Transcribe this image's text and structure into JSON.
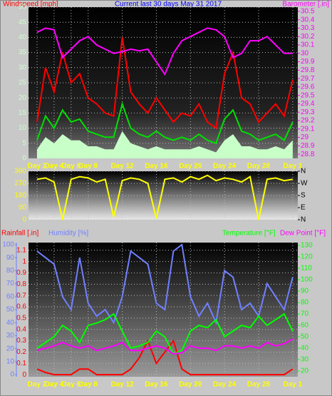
{
  "chart_data": [
    {
      "type": "line",
      "title": "Current last 30 days May 31 2017",
      "ylabel": "Windspeed [mph]",
      "y2label": "Barometer [.in]",
      "x": [
        0,
        1,
        2,
        3,
        4,
        5,
        6,
        7,
        8,
        9,
        10,
        11,
        12,
        13,
        14,
        15,
        16,
        17,
        18,
        19,
        20,
        21,
        22,
        23,
        24,
        25,
        26,
        27,
        28,
        29,
        30
      ],
      "xlim": [
        -1,
        30.6
      ],
      "xticks": [
        {
          "value": 0,
          "label": "Day 2"
        },
        {
          "value": 2,
          "label": "Day 4"
        },
        {
          "value": 4,
          "label": "Day 6"
        },
        {
          "value": 6,
          "label": "Day 8"
        },
        {
          "value": 10,
          "label": "Day 12"
        },
        {
          "value": 14,
          "label": "Day 16"
        },
        {
          "value": 18,
          "label": "Day 20"
        },
        {
          "value": 22,
          "label": "Day 24"
        },
        {
          "value": 26,
          "label": "Day 28"
        },
        {
          "value": 30,
          "label": "Day 1"
        }
      ],
      "ylim": [
        0,
        50
      ],
      "yticks": [
        0,
        5,
        10,
        15,
        20,
        25,
        30,
        35,
        40,
        45,
        50
      ],
      "y2lim": [
        28.75,
        30.55
      ],
      "y2ticks": [
        28.8,
        28.9,
        29,
        29.1,
        29.2,
        29.3,
        29.4,
        29.5,
        29.6,
        29.7,
        29.8,
        29.9,
        30,
        30.1,
        30.2,
        30.3,
        30.4,
        30.5
      ],
      "grid": true,
      "series": [
        {
          "style": "area",
          "color": "#c8ffc8",
          "values": [
            3,
            7,
            5,
            8,
            6,
            6,
            4,
            4,
            3,
            3,
            9,
            5,
            4,
            3,
            4,
            3,
            3,
            3,
            3,
            4,
            3,
            2,
            6,
            8,
            4,
            4,
            3,
            3,
            4,
            3,
            6
          ]
        },
        {
          "color": "#ff0000",
          "values": [
            12,
            30,
            22,
            35,
            25,
            28,
            20,
            18,
            15,
            14,
            40,
            22,
            18,
            15,
            20,
            16,
            12,
            15,
            14,
            18,
            12,
            10,
            28,
            35,
            20,
            18,
            12,
            15,
            18,
            14,
            26
          ]
        },
        {
          "color": "#00e000",
          "values": [
            6,
            14,
            10,
            16,
            12,
            13,
            9,
            8,
            7,
            7,
            18,
            10,
            8,
            7,
            9,
            7,
            6,
            7,
            6,
            8,
            6,
            5,
            13,
            16,
            9,
            8,
            6,
            7,
            8,
            6,
            12
          ]
        },
        {
          "color": "#ff00ff",
          "axis": "y2",
          "values": [
            30.25,
            30.3,
            30.28,
            29.95,
            30.05,
            30.15,
            30.2,
            30.1,
            30.05,
            30.0,
            30.02,
            30.05,
            30.03,
            30.05,
            29.9,
            29.75,
            30.0,
            30.15,
            30.2,
            30.25,
            30.3,
            30.28,
            30.2,
            29.95,
            30.0,
            30.15,
            30.15,
            30.2,
            30.1,
            30.0,
            30.0
          ]
        }
      ]
    },
    {
      "type": "line",
      "x": [
        0,
        1,
        2,
        3,
        4,
        5,
        6,
        7,
        8,
        9,
        10,
        11,
        12,
        13,
        14,
        15,
        16,
        17,
        18,
        19,
        20,
        21,
        22,
        23,
        24,
        25,
        26,
        27,
        28,
        29,
        30
      ],
      "xlim": [
        -1,
        30.6
      ],
      "ylim": [
        0,
        360
      ],
      "yticks": [
        0,
        90,
        180,
        270,
        360
      ],
      "y2lim": [
        0,
        360
      ],
      "y2ticks": [
        {
          "value": 0,
          "label": "N"
        },
        {
          "value": 90,
          "label": "E"
        },
        {
          "value": 180,
          "label": "S"
        },
        {
          "value": 270,
          "label": "W"
        },
        {
          "value": 360,
          "label": "N"
        }
      ],
      "grid": true,
      "series": [
        {
          "color": "#ffff00",
          "values": [
            300,
            310,
            280,
            0,
            300,
            320,
            310,
            280,
            300,
            20,
            290,
            310,
            300,
            270,
            10,
            300,
            310,
            280,
            320,
            300,
            330,
            290,
            310,
            300,
            280,
            320,
            0,
            300,
            310,
            290,
            300
          ]
        }
      ]
    },
    {
      "type": "line",
      "x": [
        0,
        1,
        2,
        3,
        4,
        5,
        6,
        7,
        8,
        9,
        10,
        11,
        12,
        13,
        14,
        15,
        16,
        17,
        18,
        19,
        20,
        21,
        22,
        23,
        24,
        25,
        26,
        27,
        28,
        29,
        30
      ],
      "xlim": [
        -1,
        30.6
      ],
      "xticks": [
        {
          "value": 0,
          "label": "Day 2"
        },
        {
          "value": 2,
          "label": "Day 4"
        },
        {
          "value": 4,
          "label": "Day 6"
        },
        {
          "value": 6,
          "label": "Day 8"
        },
        {
          "value": 10,
          "label": "Day 12"
        },
        {
          "value": 14,
          "label": "Day 16"
        },
        {
          "value": 18,
          "label": "Day 20"
        },
        {
          "value": 22,
          "label": "Day 24"
        },
        {
          "value": 26,
          "label": "Day 28"
        },
        {
          "value": 30,
          "label": "Day 1"
        }
      ],
      "ylim": [
        -0.018,
        1.168
      ],
      "yticks": [
        0,
        0.1,
        0.2,
        0.3,
        0.4,
        0.5,
        0.6,
        0.7,
        0.8,
        0.9,
        1,
        1.1
      ],
      "y3lim": [
        -1.6,
        101.6
      ],
      "y3ticks": [
        0,
        10,
        20,
        30,
        40,
        50,
        60,
        70,
        80,
        90,
        100
      ],
      "y2lim": [
        15,
        132.5
      ],
      "y2ticks": [
        20,
        30,
        40,
        50,
        60,
        70,
        80,
        90,
        100,
        110,
        120,
        130
      ],
      "grid": true,
      "series": [
        {
          "name": "Rainfall [.in]",
          "color": "#ff0000",
          "values": [
            0.05,
            0.02,
            0,
            0,
            0,
            0.05,
            0.05,
            0,
            0,
            0,
            0,
            0.05,
            0.15,
            0.3,
            0.1,
            0.2,
            0.3,
            0.05,
            0,
            0,
            0,
            0,
            0,
            0,
            0,
            0,
            0,
            0,
            0,
            0,
            0.05
          ]
        },
        {
          "name": "Humidity [%]",
          "color": "#7080ff",
          "axis": "y3",
          "values": [
            95,
            90,
            85,
            60,
            50,
            90,
            55,
            45,
            50,
            40,
            60,
            95,
            90,
            85,
            55,
            50,
            95,
            100,
            60,
            45,
            55,
            40,
            80,
            75,
            50,
            55,
            45,
            70,
            60,
            50,
            75
          ]
        },
        {
          "name": "Temperature [°F]",
          "color": "#00ff00",
          "axis": "y2",
          "values": [
            40,
            45,
            50,
            60,
            55,
            45,
            60,
            62,
            65,
            70,
            55,
            40,
            42,
            45,
            55,
            50,
            35,
            38,
            55,
            60,
            58,
            65,
            50,
            55,
            60,
            58,
            68,
            60,
            65,
            70,
            55
          ]
        },
        {
          "name": "Dew Point [°F]",
          "color": "#ff00ff",
          "axis": "y2",
          "values": [
            38,
            40,
            42,
            45,
            42,
            40,
            42,
            38,
            40,
            42,
            45,
            38,
            38,
            40,
            42,
            40,
            35,
            36,
            42,
            40,
            40,
            38,
            42,
            42,
            40,
            42,
            40,
            45,
            42,
            44,
            48
          ]
        }
      ]
    }
  ]
}
